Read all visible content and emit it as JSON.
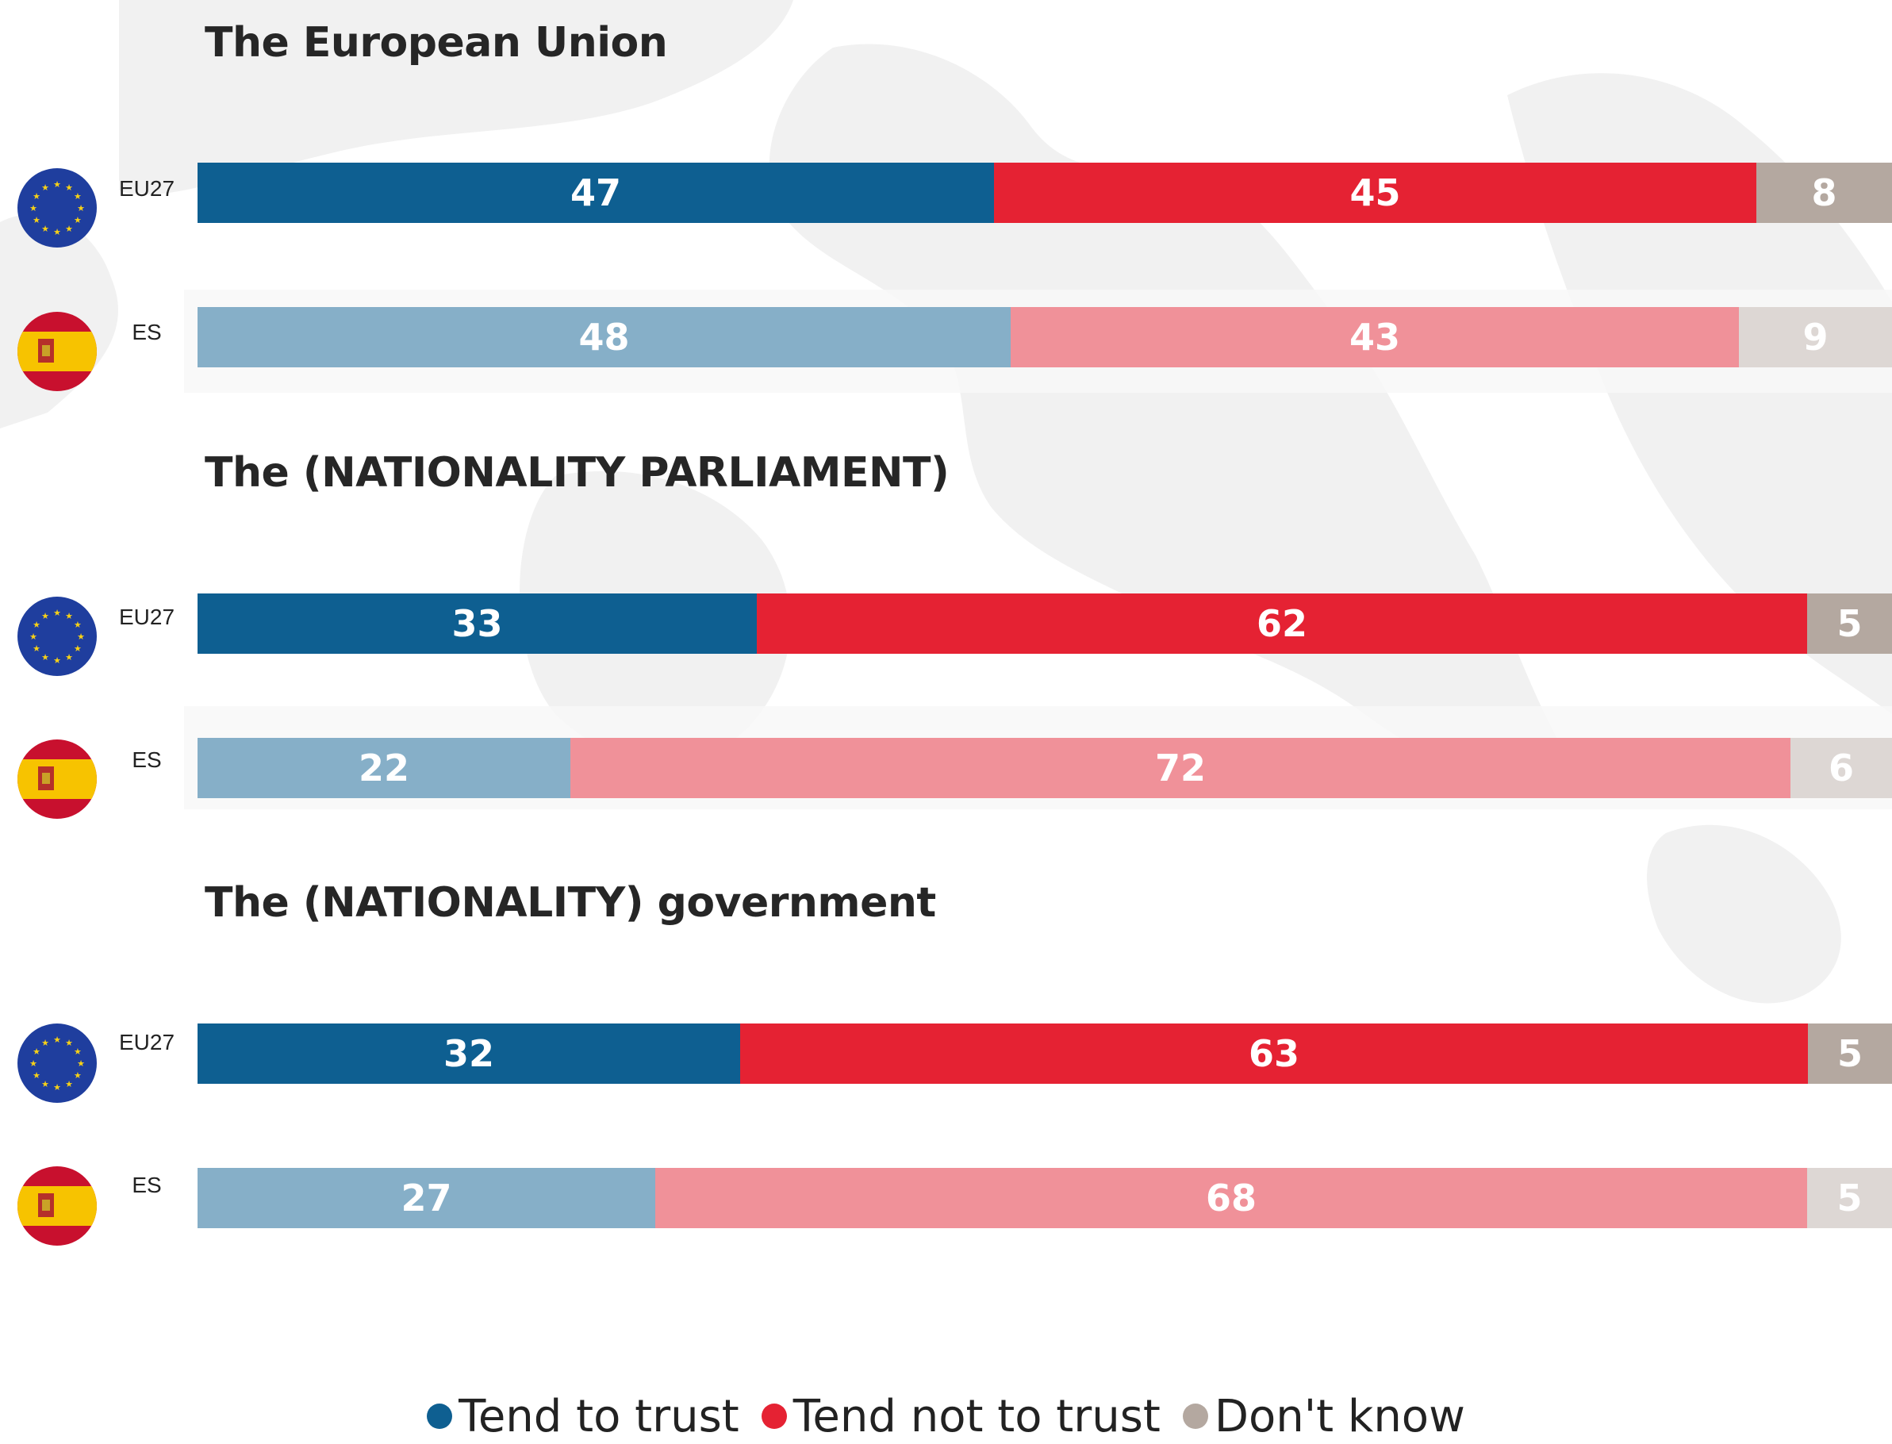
{
  "colors": {
    "trust": "#0e5f91",
    "not_trust": "#e52233",
    "dont_know": "#b4a8a0",
    "trust_light": "#86afc8",
    "not_trust_light": "#f09199",
    "dont_know_light": "#ddd7d4",
    "eu_flag": "#1f3e9e",
    "eu_star": "#f7d117",
    "es_red": "#c8102e",
    "es_yellow": "#f7c300"
  },
  "legend": {
    "trust": "Tend to trust",
    "not_trust": "Tend not to trust",
    "dont_know": "Don't know"
  },
  "chart_data": {
    "type": "bar",
    "orientation": "horizontal",
    "stacked": true,
    "unit": "%",
    "xlim": [
      0,
      100
    ],
    "series_names": [
      "Tend to trust",
      "Tend not to trust",
      "Don't know"
    ],
    "groups": [
      {
        "title": "The European Union",
        "rows": [
          {
            "label": "EU27",
            "flag": "eu-flag-icon",
            "values": [
              47,
              45,
              8
            ]
          },
          {
            "label": "ES",
            "flag": "spain-flag-icon",
            "values": [
              48,
              43,
              9
            ]
          }
        ]
      },
      {
        "title": "The (NATIONALITY PARLIAMENT)",
        "rows": [
          {
            "label": "EU27",
            "flag": "eu-flag-icon",
            "values": [
              33,
              62,
              5
            ]
          },
          {
            "label": "ES",
            "flag": "spain-flag-icon",
            "values": [
              22,
              72,
              6
            ]
          }
        ]
      },
      {
        "title": "The (NATIONALITY) government",
        "rows": [
          {
            "label": "EU27",
            "flag": "eu-flag-icon",
            "values": [
              32,
              63,
              5
            ]
          },
          {
            "label": "ES",
            "flag": "spain-flag-icon",
            "values": [
              27,
              68,
              5
            ]
          }
        ]
      }
    ]
  }
}
